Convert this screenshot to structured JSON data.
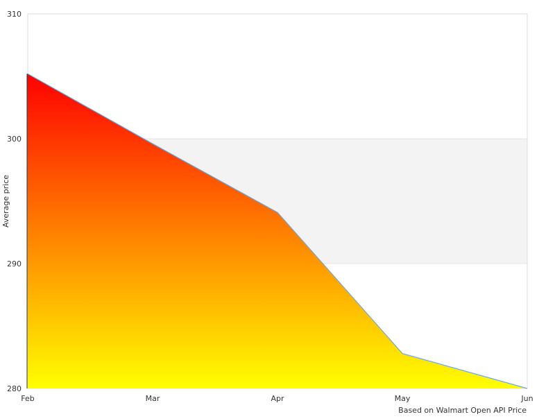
{
  "chart_data": {
    "type": "area",
    "title": "",
    "xlabel": "Based on Walmart Open API Price",
    "ylabel": "Average price",
    "categories": [
      "Feb",
      "Mar",
      "Apr",
      "May",
      "Jun"
    ],
    "series": [
      {
        "values": [
          305.2,
          299.6,
          294.1,
          282.8,
          280.0
        ]
      }
    ],
    "ylim": [
      280,
      310
    ],
    "yticks": [
      280,
      290,
      300,
      310
    ],
    "grid": "alternating horizontal bands",
    "legend": "none",
    "colors": {
      "gradient_top": "#ff0000",
      "gradient_bottom": "#ffff00",
      "line": "#6fa8dc",
      "band": "#f3f3f3",
      "border": "#dddddd"
    }
  }
}
